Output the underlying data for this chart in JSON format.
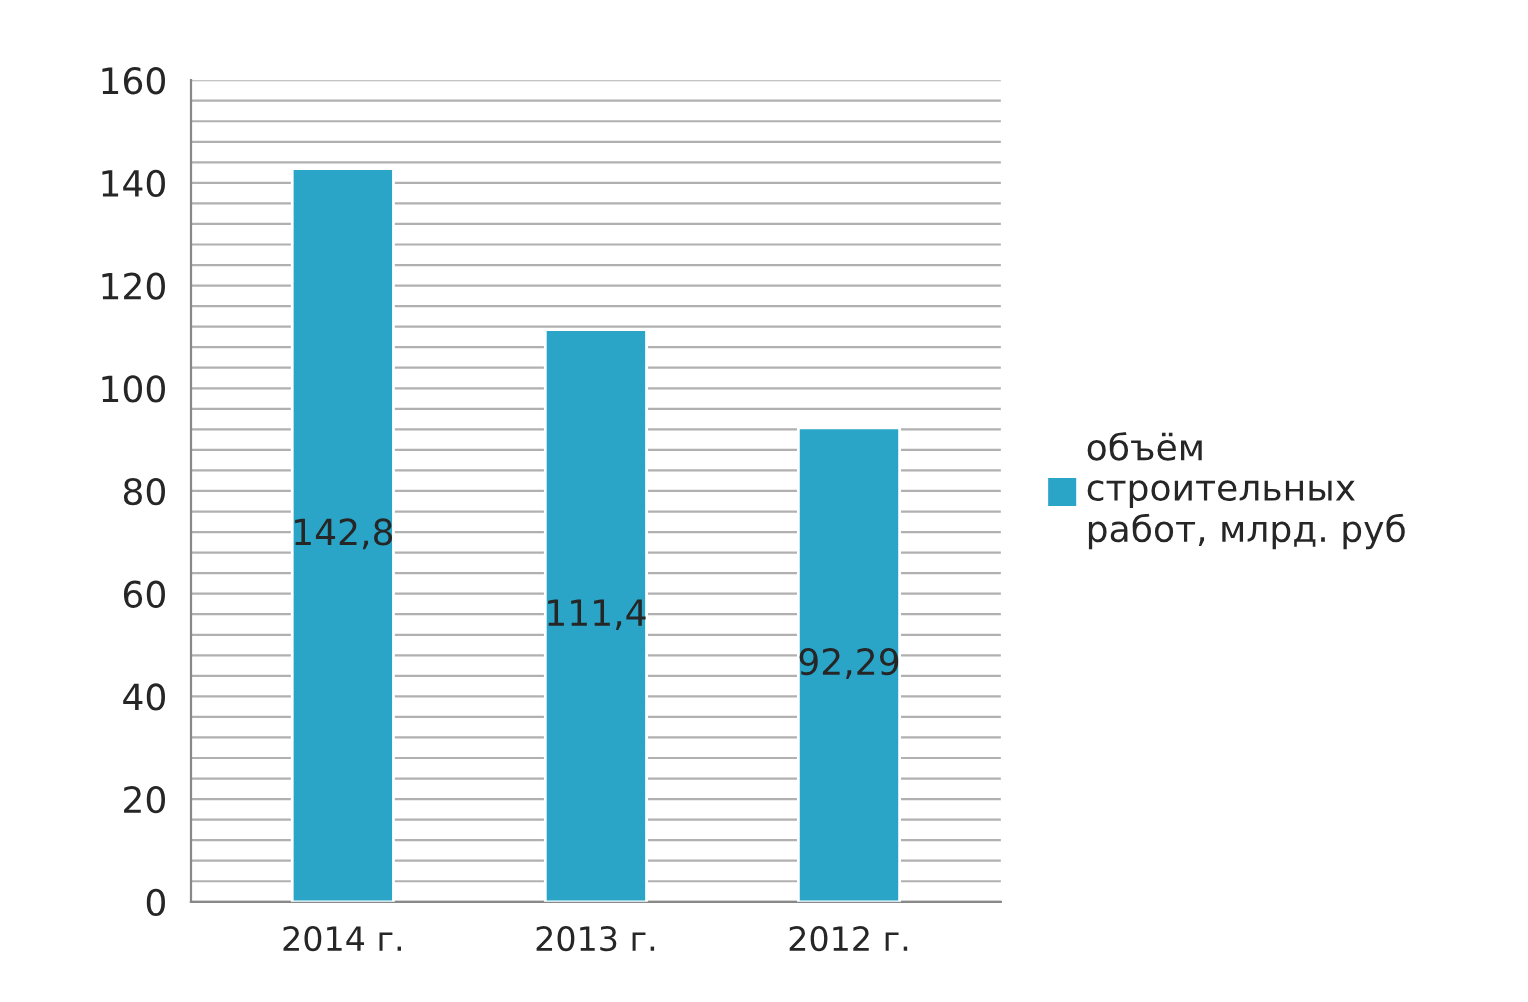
{
  "chart_data": {
    "type": "bar",
    "categories": [
      "2014 г.",
      "2013 г.",
      "2012 г."
    ],
    "series": [
      {
        "name": "объём\nстроительных\nработ, млрд. руб",
        "color": "#2aa5c8",
        "values": [
          142.8,
          111.4,
          92.29
        ],
        "value_labels": [
          "142,8",
          "111,4",
          "92,29"
        ]
      }
    ],
    "ylim": [
      0,
      160
    ],
    "yticks": [
      0,
      20,
      40,
      60,
      80,
      100,
      120,
      140,
      160
    ],
    "grid": "y",
    "legend": "right"
  }
}
